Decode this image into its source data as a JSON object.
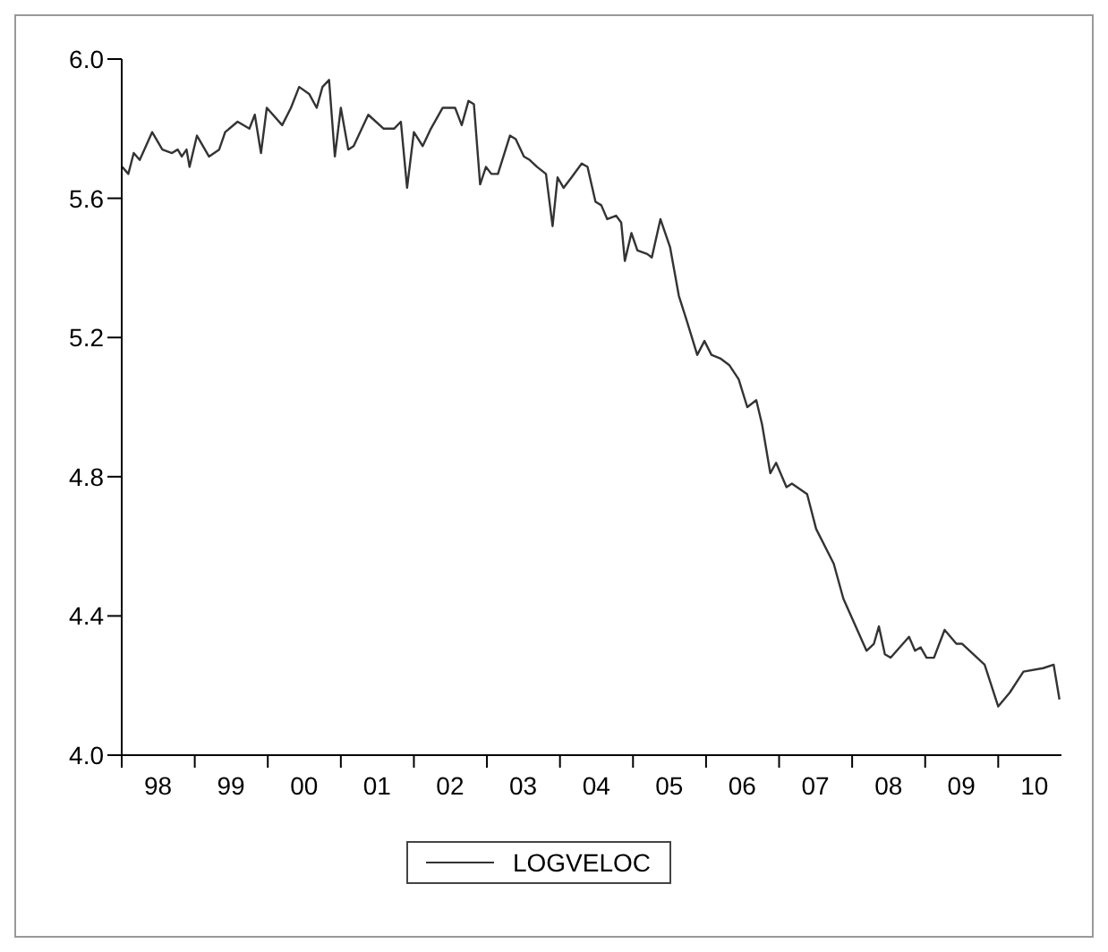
{
  "chart_data": {
    "type": "line",
    "legend": "bottom",
    "grid": false,
    "marker": "none",
    "line_style": "solid",
    "xlim": [
      "1998-01-01",
      "2010-11-13"
    ],
    "xticks": [
      {
        "value": "1998-01-01",
        "label": null
      },
      {
        "value": "1998-07-01",
        "label": "98"
      },
      {
        "value": "1999-01-01",
        "label": null
      },
      {
        "value": "1999-07-01",
        "label": "99"
      },
      {
        "value": "2000-01-01",
        "label": null
      },
      {
        "value": "2000-07-01",
        "label": "00"
      },
      {
        "value": "2001-01-01",
        "label": null
      },
      {
        "value": "2001-07-01",
        "label": "01"
      },
      {
        "value": "2002-01-01",
        "label": null
      },
      {
        "value": "2002-07-01",
        "label": "02"
      },
      {
        "value": "2003-01-01",
        "label": null
      },
      {
        "value": "2003-07-01",
        "label": "03"
      },
      {
        "value": "2004-01-01",
        "label": null
      },
      {
        "value": "2004-07-01",
        "label": "04"
      },
      {
        "value": "2005-01-01",
        "label": null
      },
      {
        "value": "2005-07-01",
        "label": "05"
      },
      {
        "value": "2006-01-01",
        "label": null
      },
      {
        "value": "2006-07-01",
        "label": "06"
      },
      {
        "value": "2007-01-01",
        "label": null
      },
      {
        "value": "2007-07-01",
        "label": "07"
      },
      {
        "value": "2008-01-01",
        "label": null
      },
      {
        "value": "2008-07-01",
        "label": "08"
      },
      {
        "value": "2009-01-01",
        "label": null
      },
      {
        "value": "2009-07-01",
        "label": "09"
      },
      {
        "value": "2010-01-01",
        "label": null
      },
      {
        "value": "2010-07-01",
        "label": "10"
      }
    ],
    "ylim": [
      4,
      6
    ],
    "yticks": [
      {
        "value": 4,
        "label": "4.0"
      },
      {
        "value": 4.4,
        "label": "4.4"
      },
      {
        "value": 4.8,
        "label": "4.8"
      },
      {
        "value": 5.2,
        "label": "5.2"
      },
      {
        "value": 5.6,
        "label": "5.6"
      },
      {
        "value": 6,
        "label": "6.0"
      }
    ],
    "x": [
      "1998-01-04",
      "1998-02-03",
      "1998-03-02",
      "1998-04-01",
      "1998-06-02",
      "1998-07-23",
      "1998-09-09",
      "1998-10-08",
      "1998-10-28",
      "1998-11-21",
      "1998-12-06",
      "1999-01-12",
      "1999-03-13",
      "1999-05-03",
      "1999-06-02",
      "1999-08-03",
      "1999-10-01",
      "1999-10-28",
      "1999-11-28",
      "1999-12-27",
      "2000-03-13",
      "2000-04-26",
      "2000-06-06",
      "2000-07-26",
      "2000-09-02",
      "2000-10-01",
      "2000-11-03",
      "2000-12-02",
      "2001-01-01",
      "2001-02-07",
      "2001-03-06",
      "2001-05-18",
      "2001-08-03",
      "2001-09-24",
      "2001-10-28",
      "2001-11-28",
      "2002-01-01",
      "2002-02-14",
      "2002-03-27",
      "2002-05-25",
      "2002-07-26",
      "2002-08-28",
      "2002-10-01",
      "2002-10-28",
      "2002-11-28",
      "2002-12-27",
      "2003-01-23",
      "2003-02-25",
      "2003-04-26",
      "2003-05-25",
      "2003-07-05",
      "2003-08-03",
      "2003-09-09",
      "2003-10-23",
      "2003-11-25",
      "2003-12-20",
      "2004-01-19",
      "2004-02-28",
      "2004-04-19",
      "2004-05-18",
      "2004-06-27",
      "2004-07-26",
      "2004-08-25",
      "2004-10-08",
      "2004-11-03",
      "2004-11-21",
      "2004-12-24",
      "2005-01-23",
      "2005-03-13",
      "2005-04-05",
      "2005-05-18",
      "2005-07-05",
      "2005-08-18",
      "2005-10-01",
      "2005-11-18",
      "2005-12-24",
      "2006-01-28",
      "2006-03-13",
      "2006-04-28",
      "2006-06-13",
      "2006-07-26",
      "2006-09-09",
      "2006-10-08",
      "2006-11-18",
      "2006-12-17",
      "2007-02-07",
      "2007-03-06",
      "2007-05-21",
      "2007-07-05",
      "2007-10-01",
      "2007-11-18",
      "2008-03-13",
      "2008-04-19",
      "2008-05-14",
      "2008-06-13",
      "2008-07-12",
      "2008-10-12",
      "2008-11-11",
      "2008-12-09",
      "2009-01-08",
      "2009-02-14",
      "2009-04-08",
      "2009-06-06",
      "2009-07-05",
      "2009-10-25",
      "2010-01-01",
      "2010-02-28",
      "2010-05-07",
      "2010-08-14",
      "2010-10-05",
      "2010-11-03"
    ],
    "series": [
      {
        "name": "LOGVELOC",
        "color": "#333333",
        "values": [
          5.69,
          5.67,
          5.73,
          5.71,
          5.79,
          5.74,
          5.73,
          5.74,
          5.72,
          5.74,
          5.69,
          5.78,
          5.72,
          5.74,
          5.79,
          5.82,
          5.8,
          5.84,
          5.73,
          5.86,
          5.81,
          5.86,
          5.92,
          5.9,
          5.86,
          5.92,
          5.94,
          5.72,
          5.86,
          5.74,
          5.75,
          5.84,
          5.8,
          5.8,
          5.82,
          5.63,
          5.79,
          5.75,
          5.8,
          5.86,
          5.86,
          5.81,
          5.88,
          5.87,
          5.64,
          5.69,
          5.67,
          5.67,
          5.78,
          5.77,
          5.72,
          5.71,
          5.69,
          5.67,
          5.52,
          5.66,
          5.63,
          5.66,
          5.7,
          5.69,
          5.59,
          5.58,
          5.54,
          5.55,
          5.53,
          5.42,
          5.5,
          5.45,
          5.44,
          5.43,
          5.54,
          5.46,
          5.32,
          5.24,
          5.15,
          5.19,
          5.15,
          5.14,
          5.12,
          5.08,
          5.0,
          5.02,
          4.95,
          4.81,
          4.84,
          4.77,
          4.78,
          4.75,
          4.65,
          4.55,
          4.45,
          4.3,
          4.32,
          4.37,
          4.29,
          4.28,
          4.34,
          4.3,
          4.31,
          4.28,
          4.28,
          4.36,
          4.32,
          4.32,
          4.26,
          4.14,
          4.18,
          4.24,
          4.25,
          4.26,
          4.16
        ]
      }
    ]
  }
}
